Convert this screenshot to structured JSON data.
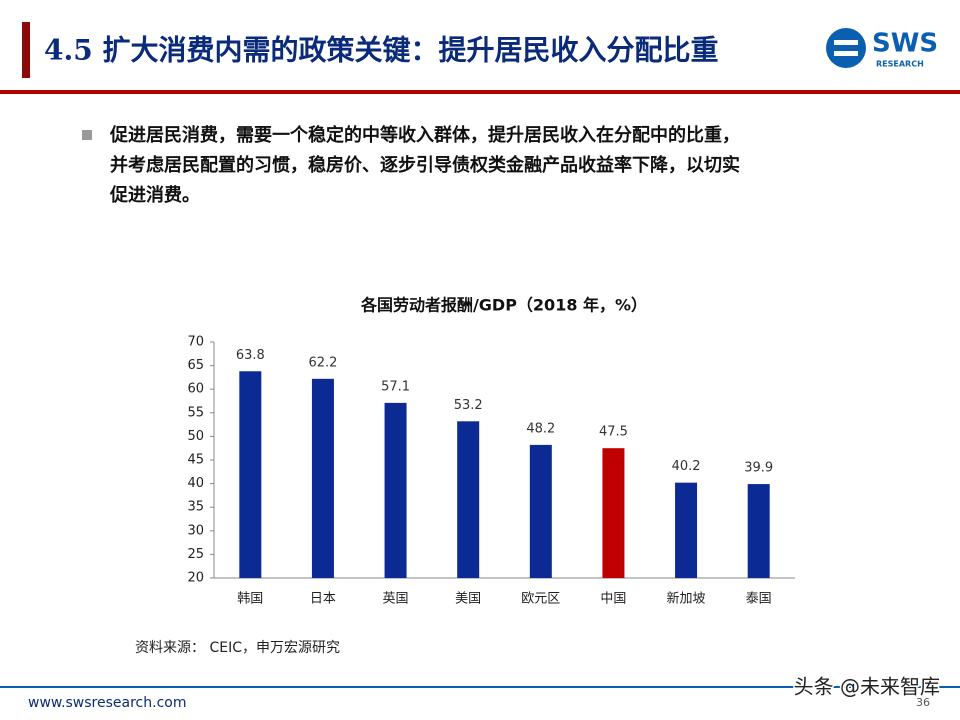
{
  "header": {
    "title": "4.5 扩大消费内需的政策关键：提升居民收入分配比重",
    "logo": "SWS",
    "logo_sub": "RESEARCH"
  },
  "bullet": {
    "lines": [
      "促进居民消费，需要一个稳定的中等收入群体，提升居民收入在分配中的比重，",
      "并考虑居民配置的习惯，稳房价、逐步引导债权类金融产品收益率下降，以切实",
      "促进消费。"
    ]
  },
  "chart_data": {
    "type": "bar",
    "title": "各国劳动者报酬/GDP（2018 年，%）",
    "categories": [
      "韩国",
      "日本",
      "英国",
      "美国",
      "欧元区",
      "中国",
      "新加坡",
      "泰国"
    ],
    "values": [
      63.8,
      62.2,
      57.1,
      53.2,
      48.2,
      47.5,
      40.2,
      39.9
    ],
    "colors": [
      "#0c2a93",
      "#0c2a93",
      "#0c2a93",
      "#0c2a93",
      "#0c2a93",
      "#c00000",
      "#0c2a93",
      "#0c2a93"
    ],
    "ylim": [
      20,
      70
    ],
    "yticks": [
      20,
      25,
      30,
      35,
      40,
      45,
      50,
      55,
      60,
      65,
      70
    ],
    "grid": false
  },
  "source": "资料来源： CEIC，申万宏源研究",
  "footer": {
    "url": "www.swsresearch.com",
    "page": "36",
    "watermark": "头条 @未来智库"
  }
}
